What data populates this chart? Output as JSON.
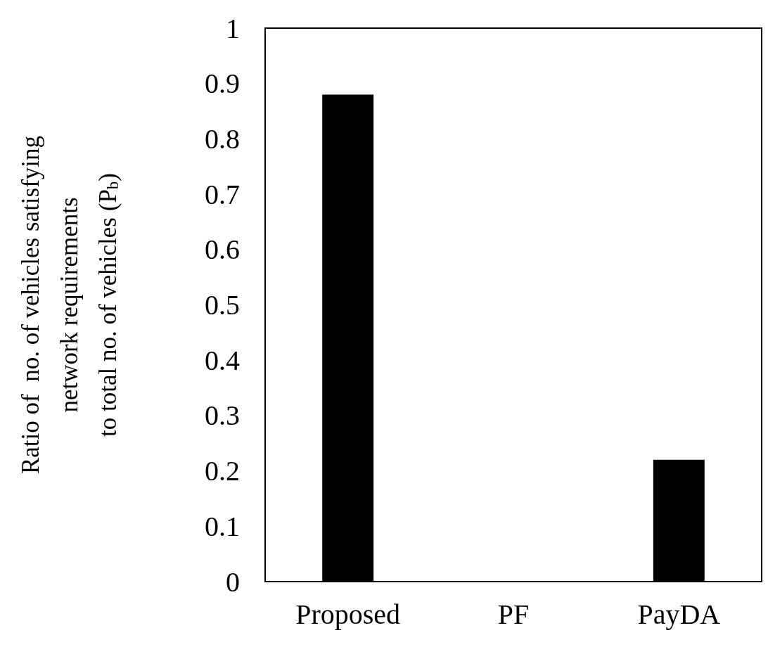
{
  "chart_data": {
    "type": "bar",
    "ylabel": "Ratio of  no. of vehicles satisfying\nnetwork requirements\nto total no. of vehicles (P$_{b}$)",
    "categories": [
      "Proposed",
      "PF",
      "PayDA"
    ],
    "values": [
      0.88,
      0,
      0.22
    ],
    "color": "#000000",
    "ylim": [
      0,
      1
    ],
    "yticks": [
      0,
      0.1,
      0.2,
      0.3,
      0.4,
      0.5,
      0.6,
      0.7,
      0.8,
      0.9,
      1
    ]
  }
}
